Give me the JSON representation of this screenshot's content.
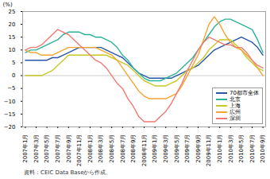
{
  "chart_data": {
    "type": "line",
    "ylabel": "(%)",
    "caption": "資料：CEIC Data Baseから作成。",
    "categories": [
      "2007年1月",
      null,
      "2007年3月",
      null,
      "2007年5月",
      null,
      "2007年7月",
      null,
      "2007年9月",
      null,
      "2007年11月",
      null,
      "2008年1月",
      null,
      "2008年3月",
      null,
      "2008年5月",
      null,
      "2008年7月",
      null,
      "2008年9月",
      null,
      "2008年11月",
      null,
      "2009年1月",
      null,
      "2009年3月",
      null,
      "2009年5月",
      null,
      "2009年7月",
      null,
      "2009年9月",
      null,
      "2009年11月",
      null,
      "2010年1月",
      null,
      "2010年3月",
      null,
      "2010年5月",
      null,
      "2010年7月",
      null,
      "2010年9月"
    ],
    "ylim": [
      -20,
      25
    ],
    "yticks": [
      -20,
      -15,
      -10,
      -5,
      0,
      5,
      10,
      15,
      20,
      25
    ],
    "grid": false,
    "legend": "lower right",
    "series": [
      {
        "name": "70都市全体",
        "color": "#2a56a8",
        "values": [
          6,
          6,
          6,
          6,
          6,
          7,
          7,
          8,
          9,
          10,
          11,
          11,
          11,
          11,
          11,
          10,
          9,
          8,
          7,
          5,
          3,
          1,
          0,
          -1,
          -1,
          -1,
          -1,
          -1,
          0,
          1,
          2,
          3,
          4,
          6,
          8,
          10,
          11,
          12,
          13,
          14,
          15,
          14,
          13,
          11,
          8
        ]
      },
      {
        "name": "北京",
        "color": "#2bb39a",
        "values": [
          9,
          10,
          10,
          11,
          12,
          13,
          14,
          16,
          17,
          17,
          17,
          16,
          16,
          15,
          15,
          14,
          13,
          11,
          8,
          6,
          3,
          1,
          -1,
          -2,
          -2,
          -2,
          -1,
          0,
          1,
          3,
          5,
          7,
          10,
          13,
          16,
          19,
          21,
          22,
          22,
          21,
          20,
          19,
          18,
          14,
          9
        ]
      },
      {
        "name": "上海",
        "color": "#c9c826",
        "values": [
          0,
          0,
          0,
          0,
          1,
          2,
          4,
          6,
          8,
          8,
          8,
          8,
          8,
          8,
          8,
          8,
          7,
          6,
          5,
          4,
          2,
          0,
          -2,
          -3,
          -4,
          -4,
          -4,
          -3,
          -2,
          0,
          2,
          3,
          5,
          7,
          10,
          12,
          14,
          14,
          14,
          12,
          10,
          7,
          5,
          3,
          2
        ]
      },
      {
        "name": "広州",
        "color": "#f3a533",
        "values": [
          10,
          9,
          9,
          8,
          8,
          8,
          9,
          10,
          11,
          11,
          11,
          11,
          11,
          11,
          10,
          9,
          8,
          6,
          3,
          0,
          -3,
          -6,
          -8,
          -9,
          -9,
          -9,
          -9,
          -8,
          -7,
          -4,
          0,
          4,
          8,
          14,
          20,
          23,
          20,
          16,
          13,
          11,
          10,
          8,
          6,
          3,
          0
        ]
      },
      {
        "name": "深圳",
        "color": "#f07a73",
        "values": [
          10,
          11,
          11,
          12,
          14,
          16,
          18,
          17,
          16,
          14,
          12,
          10,
          8,
          6,
          5,
          3,
          0,
          -3,
          -5,
          -9,
          -12,
          -16,
          -18,
          -18,
          -18,
          -16,
          -14,
          -11,
          -7,
          -3,
          2,
          6,
          10,
          13,
          15,
          14,
          13,
          12,
          12,
          11,
          11,
          9,
          6,
          4,
          3
        ]
      }
    ]
  }
}
